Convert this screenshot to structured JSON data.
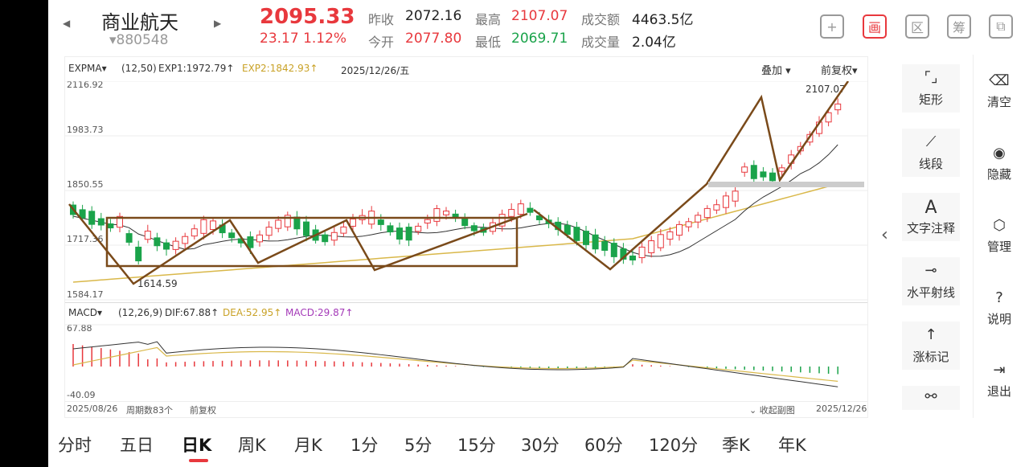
{
  "header": {
    "stock_name": "商业航天",
    "stock_code": "▾880548",
    "price": "2095.33",
    "change": "23.17  1.12%",
    "prev_close_label": "昨收",
    "prev_close": "2072.16",
    "open_label": "今开",
    "open": "2077.80",
    "high_label": "最高",
    "high": "2107.07",
    "low_label": "最低",
    "low": "2069.71",
    "amount_label": "成交额",
    "amount": "4463.5亿",
    "volume_label": "成交量",
    "volume": "2.04亿"
  },
  "toolbar_icons": [
    "plus-icon",
    "draw-icon",
    "zone-icon",
    "chip-icon",
    "device-icon"
  ],
  "toolbar_glyphs": {
    "plus": "+",
    "draw": "画",
    "zone": "区",
    "chip": "筹",
    "device": "⧉"
  },
  "kline": {
    "indicator": "EXPMA▾",
    "params": "(12,50)",
    "exp1": "EXP1:1972.79↑",
    "exp2": "EXP2:1842.93↑",
    "date": "2025/12/26/五",
    "overlay": "叠加 ▾",
    "adjust": "前复权▾",
    "y_labels": [
      "2116.92",
      "1983.73",
      "1850.55",
      "1717.36",
      "1584.17"
    ],
    "high_mark": "2107.07",
    "low_mark": "1614.59",
    "colors": {
      "up": "#e8383d",
      "down": "#1aa34a",
      "exp1": "#333333",
      "exp2": "#d9b84a",
      "drawing": "#7a4a1a"
    }
  },
  "macd": {
    "indicator": "MACD▾",
    "params": "(12,26,9)",
    "dif": "DIF:67.88↑",
    "dea": "DEA:52.95↑",
    "macd": "MACD:29.87↑",
    "y_top": "67.88",
    "y_bottom": "-40.09"
  },
  "footer": {
    "start_date": "2025/08/26",
    "periods": "周期数83个",
    "adjust": "前复权",
    "collapse": "⌄ 收起副图",
    "end_date": "2025/12/26"
  },
  "side_tools": [
    {
      "icon": "⌜⌟",
      "label": "矩形"
    },
    {
      "icon": "⟋",
      "label": "线段"
    },
    {
      "icon": "A",
      "label": "文字注释"
    },
    {
      "icon": "⊸",
      "label": "水平射线"
    },
    {
      "icon": "↑",
      "label": "涨标记"
    },
    {
      "icon": "⚯",
      "label": ""
    }
  ],
  "right_tools": [
    {
      "icon": "⌫",
      "label": "清空"
    },
    {
      "icon": "◉",
      "label": "隐藏"
    },
    {
      "icon": "⬡",
      "label": "管理"
    },
    {
      "icon": "?",
      "label": "说明"
    },
    {
      "icon": "⇥",
      "label": "退出"
    }
  ],
  "collapse_arrow": "‹",
  "nav": {
    "prev": "◀",
    "next": "▶"
  },
  "period_tabs": [
    "分时",
    "五日",
    "日K",
    "周K",
    "月K",
    "1分",
    "5分",
    "15分",
    "30分",
    "60分",
    "120分",
    "季K",
    "年K"
  ],
  "active_tab": "日K"
}
